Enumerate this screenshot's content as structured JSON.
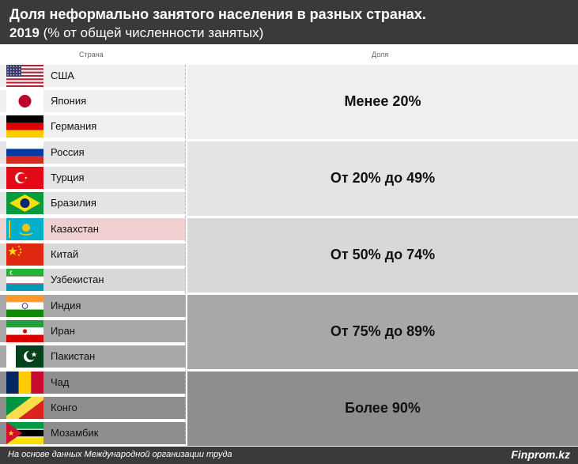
{
  "header": {
    "title": "Доля неформально занятого населения в разных странах.",
    "year": "2019",
    "subtitle": "(% от общей численности занятых)"
  },
  "columns": {
    "country": "Страна",
    "share": "Доля"
  },
  "chart_data": {
    "type": "table",
    "groups": [
      {
        "label": "Менее 20%",
        "range": [
          0,
          20
        ],
        "fill": "#efefef",
        "countries": [
          {
            "name": "США",
            "flag": "usa-flag-icon"
          },
          {
            "name": "Япония",
            "flag": "japan-flag-icon"
          },
          {
            "name": "Германия",
            "flag": "germany-flag-icon"
          }
        ]
      },
      {
        "label": "От 20% до 49%",
        "range": [
          20,
          49
        ],
        "fill": "#e4e4e4",
        "countries": [
          {
            "name": "Россия",
            "flag": "russia-flag-icon"
          },
          {
            "name": "Турция",
            "flag": "turkey-flag-icon"
          },
          {
            "name": "Бразилия",
            "flag": "brazil-flag-icon"
          }
        ]
      },
      {
        "label": "От 50% до 74%",
        "range": [
          50,
          74
        ],
        "fill": "#d8d8d8",
        "countries": [
          {
            "name": "Казахстан",
            "flag": "kazakhstan-flag-icon",
            "highlight": "#efcfcf"
          },
          {
            "name": "Китай",
            "flag": "china-flag-icon"
          },
          {
            "name": "Узбекистан",
            "flag": "uzbekistan-flag-icon"
          }
        ]
      },
      {
        "label": "От 75% до 89%",
        "range": [
          75,
          89
        ],
        "fill": "#a8a8a8",
        "countries": [
          {
            "name": "Индия",
            "flag": "india-flag-icon"
          },
          {
            "name": "Иран",
            "flag": "iran-flag-icon"
          },
          {
            "name": "Пакистан",
            "flag": "pakistan-flag-icon"
          }
        ]
      },
      {
        "label": "Более 90%",
        "range": [
          90,
          100
        ],
        "fill": "#8e8e8e",
        "countries": [
          {
            "name": "Чад",
            "flag": "chad-flag-icon"
          },
          {
            "name": "Конго",
            "flag": "congo-flag-icon"
          },
          {
            "name": "Мозамбик",
            "flag": "mozambique-flag-icon"
          }
        ]
      }
    ]
  },
  "footer": {
    "source": "На основе данных Международной организации труда",
    "brand": "Finprom.kz"
  }
}
